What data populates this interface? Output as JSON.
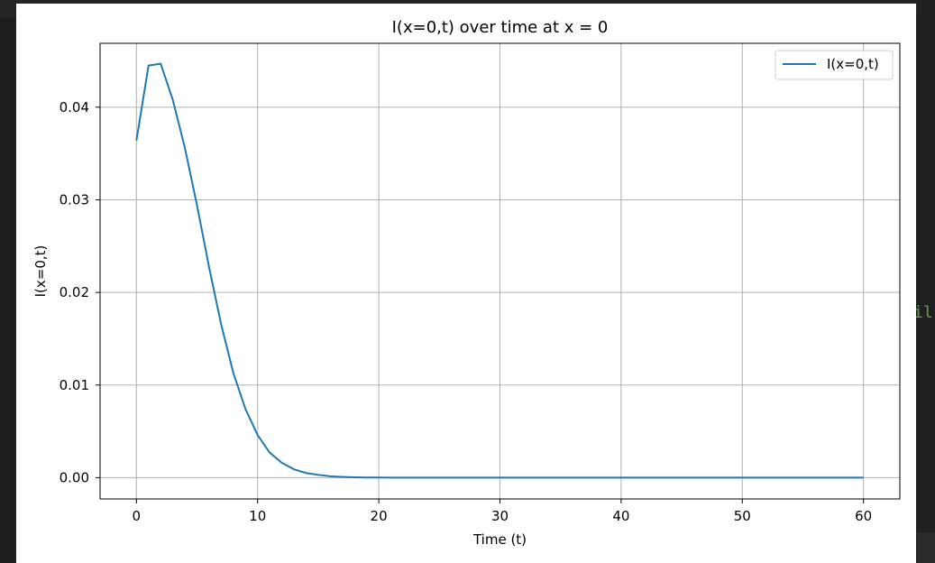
{
  "editor": {
    "peek_text": "il",
    "peek_color": "#6a9955"
  },
  "chart_data": {
    "type": "line",
    "title": "I(x=0,t) over time at x = 0",
    "xlabel": "Time (t)",
    "ylabel": "I(x=0,t)",
    "xlim": [
      -3,
      63
    ],
    "ylim": [
      -0.0023,
      0.0469
    ],
    "xticks": [
      0,
      10,
      20,
      30,
      40,
      50,
      60
    ],
    "xtick_labels": [
      "0",
      "10",
      "20",
      "30",
      "40",
      "50",
      "60"
    ],
    "yticks": [
      0.0,
      0.01,
      0.02,
      0.03,
      0.04
    ],
    "ytick_labels": [
      "0.00",
      "0.01",
      "0.02",
      "0.03",
      "0.04"
    ],
    "grid": true,
    "legend_position": "upper right",
    "series": [
      {
        "name": "I(x=0,t)",
        "color": "#1f77b4",
        "x": [
          0,
          1,
          2,
          3,
          4,
          5,
          6,
          7,
          8,
          9,
          10,
          11,
          12,
          13,
          14,
          15,
          16,
          17,
          18,
          19,
          20,
          21,
          22,
          23,
          24,
          25,
          26,
          27,
          28,
          29,
          30,
          31,
          32,
          33,
          34,
          35,
          36,
          37,
          38,
          39,
          40,
          41,
          42,
          43,
          44,
          45,
          46,
          47,
          48,
          49,
          50,
          51,
          52,
          53,
          54,
          55,
          56,
          57,
          58,
          59,
          60
        ],
        "y": [
          0.0364,
          0.0445,
          0.0447,
          0.0408,
          0.0356,
          0.0294,
          0.0227,
          0.0165,
          0.0113,
          0.0074,
          0.0046,
          0.0027,
          0.0016,
          0.0009,
          0.0005,
          0.0003,
          0.00015,
          8e-05,
          4e-05,
          2e-05,
          1e-05,
          0,
          0,
          0,
          0,
          0,
          0,
          0,
          0,
          0,
          0,
          0,
          0,
          0,
          0,
          0,
          0,
          0,
          0,
          0,
          0,
          0,
          0,
          0,
          0,
          0,
          0,
          0,
          0,
          0,
          0,
          0,
          0,
          0,
          0,
          0,
          0,
          0,
          0,
          0,
          0
        ]
      }
    ]
  }
}
